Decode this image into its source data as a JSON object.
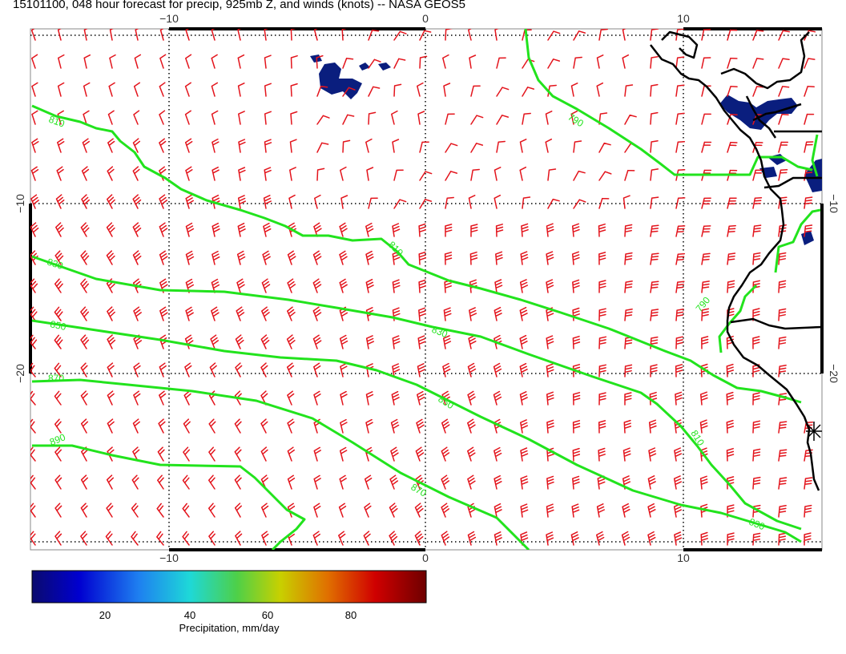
{
  "title": "15101100, 048 hour forecast for precip, 925mb Z, and winds (knots) -- NASA GEOS5",
  "map": {
    "x_ticks": [
      "−10",
      "0",
      "10"
    ],
    "y_ticks": [
      "−10",
      "−20"
    ],
    "contour_labels": [
      "810",
      "790",
      "810",
      "830",
      "850",
      "830",
      "870",
      "850",
      "890",
      "870",
      "810",
      "830",
      "790"
    ],
    "colors": {
      "contour": "#22e31d",
      "wind": "#e3141c",
      "coast": "#000000",
      "precip": "#0a1e7e",
      "grid": "#000000"
    }
  },
  "colorbar": {
    "ticks": [
      "20",
      "40",
      "60",
      "80"
    ],
    "label": "Precipitation, mm/day",
    "gradient": [
      "#0a0a6e",
      "#0000d0",
      "#1e7ff0",
      "#1ed8d8",
      "#4ed048",
      "#c8d000",
      "#e07000",
      "#d00000",
      "#6e0000"
    ]
  }
}
